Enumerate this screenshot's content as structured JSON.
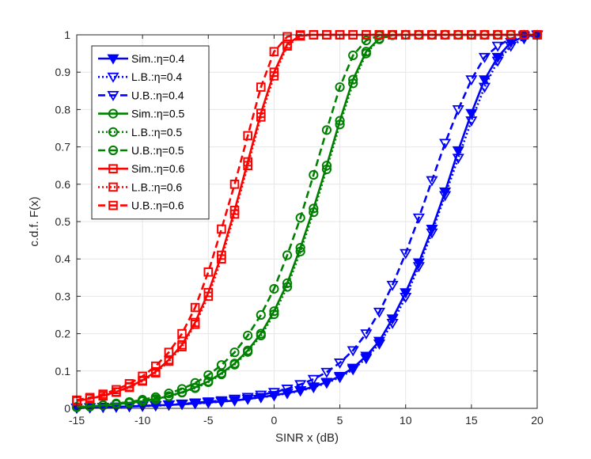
{
  "chart_data": {
    "type": "line",
    "title": "",
    "xlabel": "SINR x (dB)",
    "ylabel": "c.d.f. F(x)",
    "xlim": [
      -15,
      20
    ],
    "ylim": [
      0,
      1
    ],
    "xticks": [
      -15,
      -10,
      -5,
      0,
      5,
      10,
      15,
      20
    ],
    "yticks": [
      0,
      0.1,
      0.2,
      0.3,
      0.4,
      0.5,
      0.6,
      0.7,
      0.8,
      0.9,
      1
    ],
    "xtick_labels": [
      "-15",
      "-10",
      "-5",
      "0",
      "5",
      "10",
      "15",
      "20"
    ],
    "ytick_labels": [
      "0",
      "0.1",
      "0.2",
      "0.3",
      "0.4",
      "0.5",
      "0.6",
      "0.7",
      "0.8",
      "0.9",
      "1"
    ],
    "grid": true,
    "legend_position": "top-left",
    "colors": {
      "eta04": "#0000ff",
      "eta05": "#008000",
      "eta06": "#ff0000",
      "grid": "#e6e6e6",
      "axis": "#262626"
    },
    "series": [
      {
        "name": "Sim.:η=0.4",
        "color": "#0000ff",
        "line": "solid",
        "marker": "triangle-down",
        "filled": true,
        "x": [
          -15,
          -14,
          -13,
          -12,
          -11,
          -10,
          -9,
          -8,
          -7,
          -6,
          -5,
          -4,
          -3,
          -2,
          -1,
          0,
          1,
          2,
          3,
          4,
          5,
          6,
          7,
          8,
          9,
          10,
          11,
          12,
          13,
          14,
          15,
          16,
          17,
          18,
          19,
          20
        ],
        "y": [
          0.001,
          0.002,
          0.003,
          0.004,
          0.005,
          0.006,
          0.008,
          0.009,
          0.011,
          0.013,
          0.016,
          0.018,
          0.021,
          0.025,
          0.03,
          0.035,
          0.041,
          0.048,
          0.058,
          0.07,
          0.086,
          0.108,
          0.14,
          0.18,
          0.24,
          0.31,
          0.39,
          0.48,
          0.58,
          0.69,
          0.79,
          0.88,
          0.94,
          0.98,
          0.995,
          1.0
        ]
      },
      {
        "name": "L.B.:η=0.4",
        "color": "#0000ff",
        "line": "dotted",
        "marker": "triangle-down",
        "filled": false,
        "x": [
          -15,
          -14,
          -13,
          -12,
          -11,
          -10,
          -9,
          -8,
          -7,
          -6,
          -5,
          -4,
          -3,
          -2,
          -1,
          0,
          1,
          2,
          3,
          4,
          5,
          6,
          7,
          8,
          9,
          10,
          11,
          12,
          13,
          14,
          15,
          16,
          17,
          18,
          19,
          20
        ],
        "y": [
          0.001,
          0.002,
          0.003,
          0.004,
          0.005,
          0.006,
          0.007,
          0.009,
          0.011,
          0.013,
          0.015,
          0.018,
          0.021,
          0.025,
          0.029,
          0.034,
          0.04,
          0.047,
          0.056,
          0.068,
          0.083,
          0.104,
          0.134,
          0.173,
          0.228,
          0.298,
          0.38,
          0.47,
          0.57,
          0.67,
          0.77,
          0.86,
          0.93,
          0.97,
          0.99,
          1.0
        ]
      },
      {
        "name": "U.B.:η=0.4",
        "color": "#0000ff",
        "line": "dashed",
        "marker": "triangle-down",
        "filled": false,
        "x": [
          -15,
          -14,
          -13,
          -12,
          -11,
          -10,
          -9,
          -8,
          -7,
          -6,
          -5,
          -4,
          -3,
          -2,
          -1,
          0,
          1,
          2,
          3,
          4,
          5,
          6,
          7,
          8,
          9,
          10,
          11,
          12,
          13,
          14,
          15,
          16,
          17,
          18,
          19,
          20
        ],
        "y": [
          0.001,
          0.002,
          0.003,
          0.004,
          0.005,
          0.007,
          0.008,
          0.01,
          0.012,
          0.015,
          0.018,
          0.021,
          0.025,
          0.03,
          0.036,
          0.043,
          0.052,
          0.064,
          0.078,
          0.097,
          0.122,
          0.155,
          0.2,
          0.258,
          0.33,
          0.415,
          0.51,
          0.61,
          0.71,
          0.8,
          0.88,
          0.94,
          0.97,
          0.99,
          0.998,
          1.0
        ]
      },
      {
        "name": "Sim.:η=0.5",
        "color": "#008000",
        "line": "solid",
        "marker": "circle",
        "filled": false,
        "x": [
          -15,
          -14,
          -13,
          -12,
          -11,
          -10,
          -9,
          -8,
          -7,
          -6,
          -5,
          -4,
          -3,
          -2,
          -1,
          0,
          1,
          2,
          3,
          4,
          5,
          6,
          7,
          8,
          9,
          10,
          11,
          12,
          13,
          14,
          15,
          16,
          17,
          18,
          19,
          20
        ],
        "y": [
          0.003,
          0.005,
          0.008,
          0.011,
          0.015,
          0.019,
          0.025,
          0.033,
          0.043,
          0.056,
          0.072,
          0.094,
          0.12,
          0.155,
          0.2,
          0.26,
          0.335,
          0.43,
          0.535,
          0.65,
          0.77,
          0.88,
          0.955,
          0.99,
          0.999,
          1,
          1,
          1,
          1,
          1,
          1,
          1,
          1,
          1,
          1,
          1
        ]
      },
      {
        "name": "L.B.:η=0.5",
        "color": "#008000",
        "line": "dotted",
        "marker": "circle",
        "filled": false,
        "x": [
          -15,
          -14,
          -13,
          -12,
          -11,
          -10,
          -9,
          -8,
          -7,
          -6,
          -5,
          -4,
          -3,
          -2,
          -1,
          0,
          1,
          2,
          3,
          4,
          5,
          6,
          7,
          8,
          9,
          10,
          11,
          12,
          13,
          14,
          15,
          16,
          17,
          18,
          19,
          20
        ],
        "y": [
          0.003,
          0.005,
          0.008,
          0.011,
          0.014,
          0.019,
          0.024,
          0.032,
          0.042,
          0.054,
          0.07,
          0.091,
          0.117,
          0.151,
          0.195,
          0.252,
          0.325,
          0.42,
          0.525,
          0.64,
          0.76,
          0.87,
          0.95,
          0.988,
          0.999,
          1,
          1,
          1,
          1,
          1,
          1,
          1,
          1,
          1,
          1,
          1
        ]
      },
      {
        "name": "U.B.:η=0.5",
        "color": "#008000",
        "line": "dashed",
        "marker": "circle",
        "filled": false,
        "x": [
          -15,
          -14,
          -13,
          -12,
          -11,
          -10,
          -9,
          -8,
          -7,
          -6,
          -5,
          -4,
          -3,
          -2,
          -1,
          0,
          1,
          2,
          3,
          4,
          5,
          6,
          7,
          8,
          9,
          10,
          11,
          12,
          13,
          14,
          15,
          16,
          17,
          18,
          19,
          20
        ],
        "y": [
          0.004,
          0.006,
          0.009,
          0.013,
          0.017,
          0.023,
          0.03,
          0.04,
          0.052,
          0.068,
          0.089,
          0.116,
          0.15,
          0.195,
          0.25,
          0.32,
          0.41,
          0.51,
          0.625,
          0.745,
          0.86,
          0.945,
          0.985,
          0.998,
          1,
          1,
          1,
          1,
          1,
          1,
          1,
          1,
          1,
          1,
          1,
          1
        ]
      },
      {
        "name": "Sim.:η=0.6",
        "color": "#ff0000",
        "line": "solid",
        "marker": "square",
        "filled": false,
        "x": [
          -15,
          -14,
          -13,
          -12,
          -11,
          -10,
          -9,
          -8,
          -7,
          -6,
          -5,
          -4,
          -3,
          -2,
          -1,
          0,
          1,
          2,
          3,
          4,
          5,
          6,
          7,
          8,
          9,
          10,
          11,
          12,
          13,
          14,
          15,
          16,
          17,
          18,
          19,
          20
        ],
        "y": [
          0.02,
          0.026,
          0.034,
          0.044,
          0.058,
          0.075,
          0.098,
          0.13,
          0.17,
          0.23,
          0.31,
          0.41,
          0.53,
          0.66,
          0.79,
          0.9,
          0.975,
          0.998,
          1,
          1,
          1,
          1,
          1,
          1,
          1,
          1,
          1,
          1,
          1,
          1,
          1,
          1,
          1,
          1,
          1,
          1
        ]
      },
      {
        "name": "L.B.:η=0.6",
        "color": "#ff0000",
        "line": "dotted",
        "marker": "square",
        "filled": false,
        "x": [
          -15,
          -14,
          -13,
          -12,
          -11,
          -10,
          -9,
          -8,
          -7,
          -6,
          -5,
          -4,
          -3,
          -2,
          -1,
          0,
          1,
          2,
          3,
          4,
          5,
          6,
          7,
          8,
          9,
          10,
          11,
          12,
          13,
          14,
          15,
          16,
          17,
          18,
          19,
          20
        ],
        "y": [
          0.02,
          0.026,
          0.033,
          0.043,
          0.056,
          0.073,
          0.095,
          0.126,
          0.165,
          0.225,
          0.3,
          0.4,
          0.52,
          0.65,
          0.78,
          0.89,
          0.97,
          0.997,
          1,
          1,
          1,
          1,
          1,
          1,
          1,
          1,
          1,
          1,
          1,
          1,
          1,
          1,
          1,
          1,
          1,
          1
        ]
      },
      {
        "name": "U.B.:η=0.6",
        "color": "#ff0000",
        "line": "dashed",
        "marker": "square",
        "filled": false,
        "x": [
          -15,
          -14,
          -13,
          -12,
          -11,
          -10,
          -9,
          -8,
          -7,
          -6,
          -5,
          -4,
          -3,
          -2,
          -1,
          0,
          1,
          2,
          3,
          4,
          5,
          6,
          7,
          8,
          9,
          10,
          11,
          12,
          13,
          14,
          15,
          16,
          17,
          18,
          19,
          20
        ],
        "y": [
          0.022,
          0.029,
          0.038,
          0.05,
          0.066,
          0.086,
          0.113,
          0.15,
          0.2,
          0.27,
          0.365,
          0.48,
          0.6,
          0.73,
          0.86,
          0.955,
          0.995,
          1,
          1,
          1,
          1,
          1,
          1,
          1,
          1,
          1,
          1,
          1,
          1,
          1,
          1,
          1,
          1,
          1,
          1,
          1
        ]
      }
    ]
  }
}
